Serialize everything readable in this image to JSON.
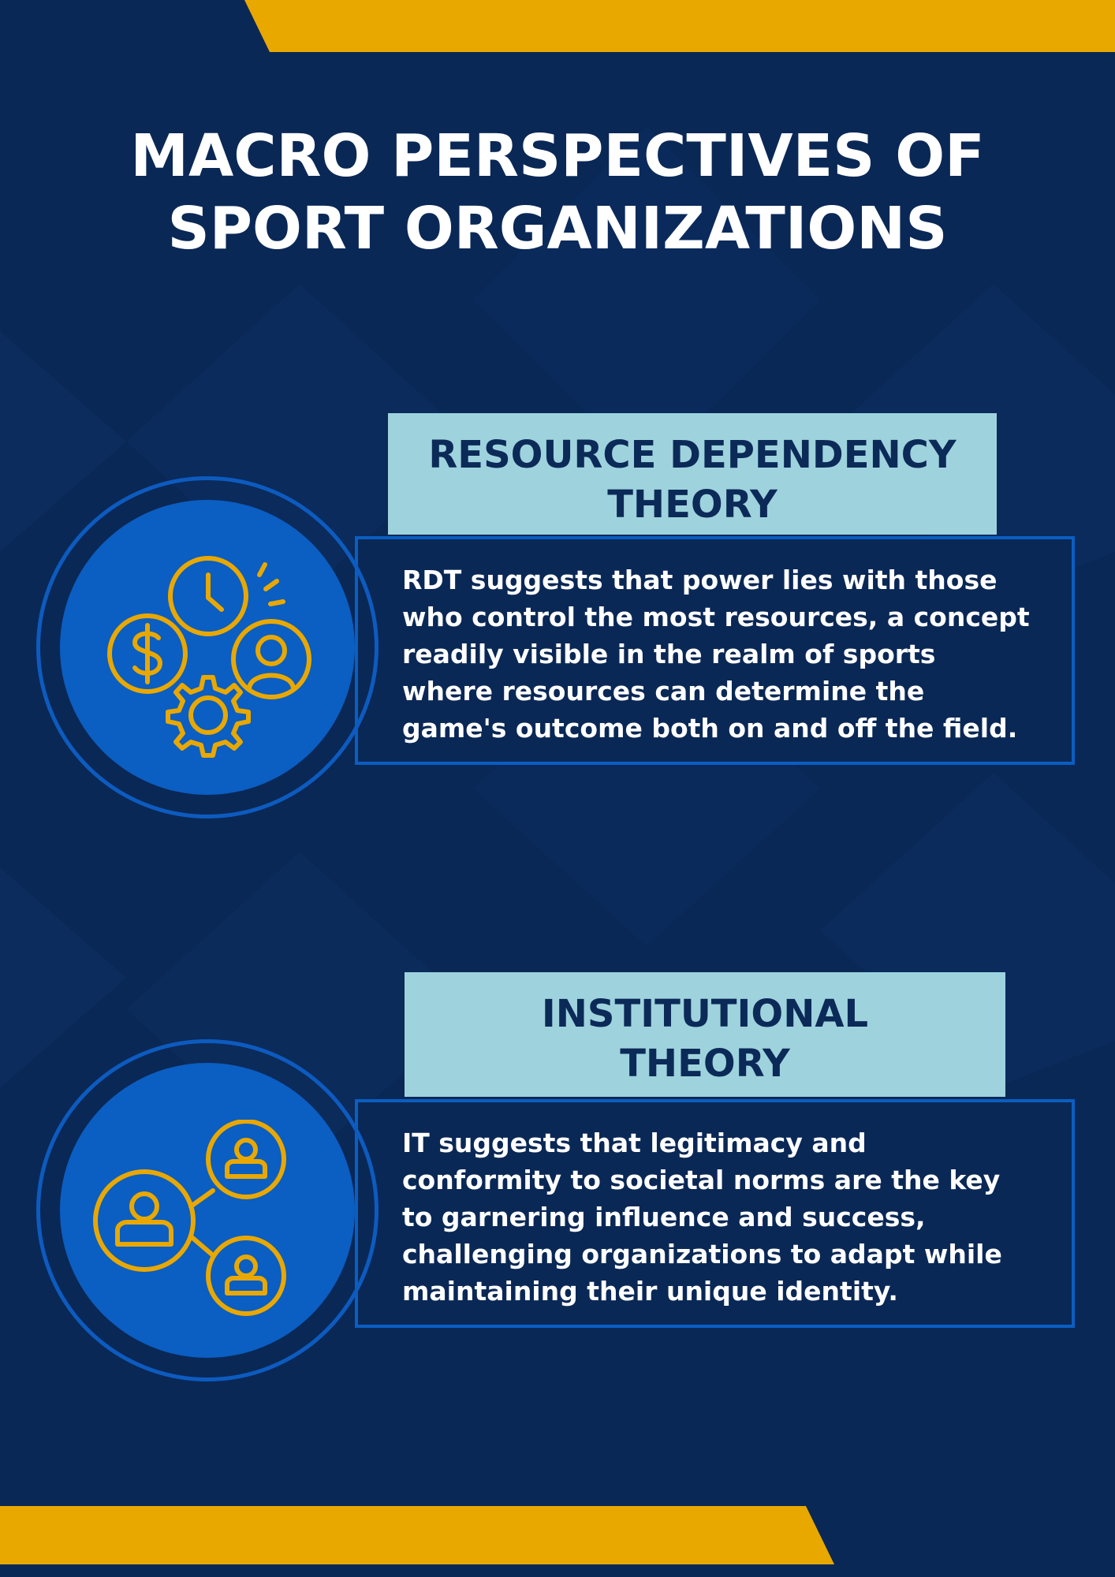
{
  "title": {
    "line1": "MACRO PERSPECTIVES OF",
    "line2": "SPORT ORGANIZATIONS"
  },
  "sections": [
    {
      "heading_line1": "RESOURCE DEPENDENCY",
      "heading_line2": "THEORY",
      "body": "RDT suggests that power lies with those who control the most resources, a concept readily visible in the realm of sports where resources can determine the game's outcome both on and off the field.",
      "icon": "resources-clock-money-person-gear-icon"
    },
    {
      "heading_line1": "INSTITUTIONAL",
      "heading_line2": "THEORY",
      "body": "IT suggests that legitimacy and conformity to societal norms are the key to garnering influence and success, challenging organizations to adapt while maintaining their unique identity.",
      "icon": "network-people-icon"
    }
  ],
  "colors": {
    "background": "#0a2856",
    "accent": "#e8a800",
    "circle": "#0b5ec2",
    "heading_box": "#9ed3dd",
    "heading_text": "#0b2a58",
    "body_text": "#ffffff"
  }
}
